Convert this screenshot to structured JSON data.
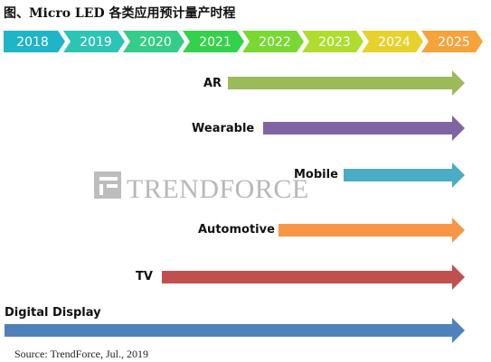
{
  "title": "图、Micro LED 各类应用预计量产时程",
  "source": "Source: TrendForce, Jul., 2019",
  "watermark": "TRENDFORCE",
  "timeline": [
    {
      "year": "2018",
      "color": "#1fb4c8"
    },
    {
      "year": "2019",
      "color": "#2cc4b4"
    },
    {
      "year": "2020",
      "color": "#33cc88"
    },
    {
      "year": "2021",
      "color": "#33d24a"
    },
    {
      "year": "2022",
      "color": "#79d832"
    },
    {
      "year": "2023",
      "color": "#b0dc2e"
    },
    {
      "year": "2024",
      "color": "#e6d22a"
    },
    {
      "year": "2025",
      "color": "#f5a33a"
    }
  ],
  "applications": [
    {
      "name": "AR",
      "color": "#9bbb59"
    },
    {
      "name": "Wearable",
      "color": "#8064a2"
    },
    {
      "name": "Mobile",
      "color": "#4bacc6"
    },
    {
      "name": "Automotive",
      "color": "#f79646"
    },
    {
      "name": "TV",
      "color": "#c0504d"
    },
    {
      "name": "Digital Display",
      "color": "#4f81bd"
    }
  ]
}
